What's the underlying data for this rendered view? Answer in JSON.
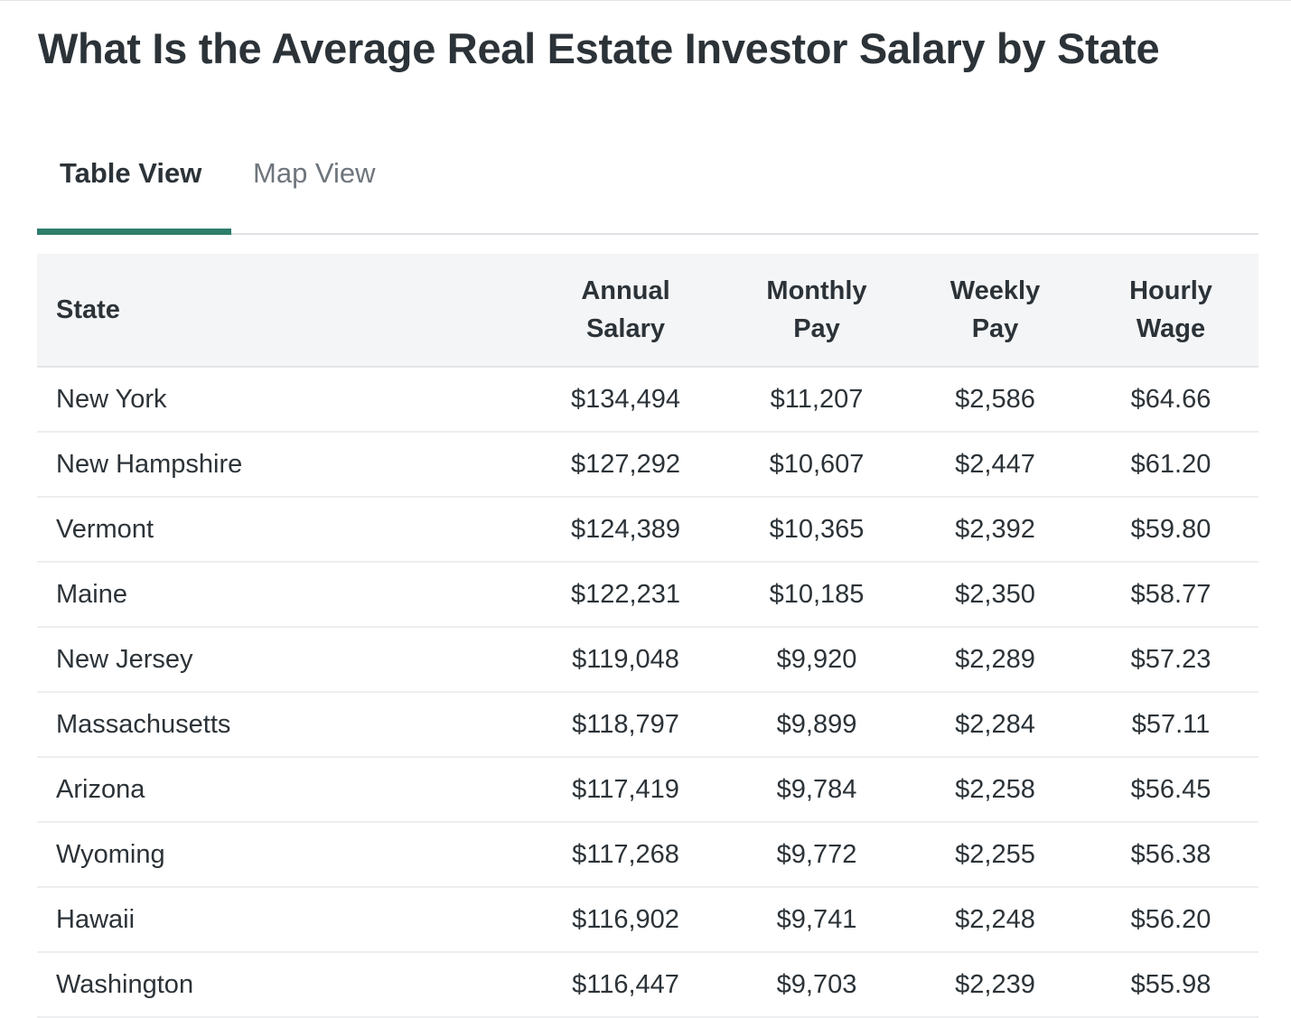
{
  "title": "What Is the Average Real Estate Investor Salary by State",
  "tabs": [
    {
      "label": "Table View",
      "active": true
    },
    {
      "label": "Map View",
      "active": false
    }
  ],
  "colors": {
    "accent": "#2e7d6b",
    "text": "#2c3338",
    "muted": "#6e757c",
    "header_bg": "#f4f5f6"
  },
  "table": {
    "headers": {
      "state": "State",
      "annual_1": "Annual",
      "annual_2": "Salary",
      "monthly_1": "Monthly",
      "monthly_2": "Pay",
      "weekly_1": "Weekly",
      "weekly_2": "Pay",
      "hourly_1": "Hourly",
      "hourly_2": "Wage"
    },
    "rows": [
      {
        "state": "New York",
        "annual": "$134,494",
        "monthly": "$11,207",
        "weekly": "$2,586",
        "hourly": "$64.66"
      },
      {
        "state": "New Hampshire",
        "annual": "$127,292",
        "monthly": "$10,607",
        "weekly": "$2,447",
        "hourly": "$61.20"
      },
      {
        "state": "Vermont",
        "annual": "$124,389",
        "monthly": "$10,365",
        "weekly": "$2,392",
        "hourly": "$59.80"
      },
      {
        "state": "Maine",
        "annual": "$122,231",
        "monthly": "$10,185",
        "weekly": "$2,350",
        "hourly": "$58.77"
      },
      {
        "state": "New Jersey",
        "annual": "$119,048",
        "monthly": "$9,920",
        "weekly": "$2,289",
        "hourly": "$57.23"
      },
      {
        "state": "Massachusetts",
        "annual": "$118,797",
        "monthly": "$9,899",
        "weekly": "$2,284",
        "hourly": "$57.11"
      },
      {
        "state": "Arizona",
        "annual": "$117,419",
        "monthly": "$9,784",
        "weekly": "$2,258",
        "hourly": "$56.45"
      },
      {
        "state": "Wyoming",
        "annual": "$117,268",
        "monthly": "$9,772",
        "weekly": "$2,255",
        "hourly": "$56.38"
      },
      {
        "state": "Hawaii",
        "annual": "$116,902",
        "monthly": "$9,741",
        "weekly": "$2,248",
        "hourly": "$56.20"
      },
      {
        "state": "Washington",
        "annual": "$116,447",
        "monthly": "$9,703",
        "weekly": "$2,239",
        "hourly": "$55.98"
      }
    ]
  }
}
